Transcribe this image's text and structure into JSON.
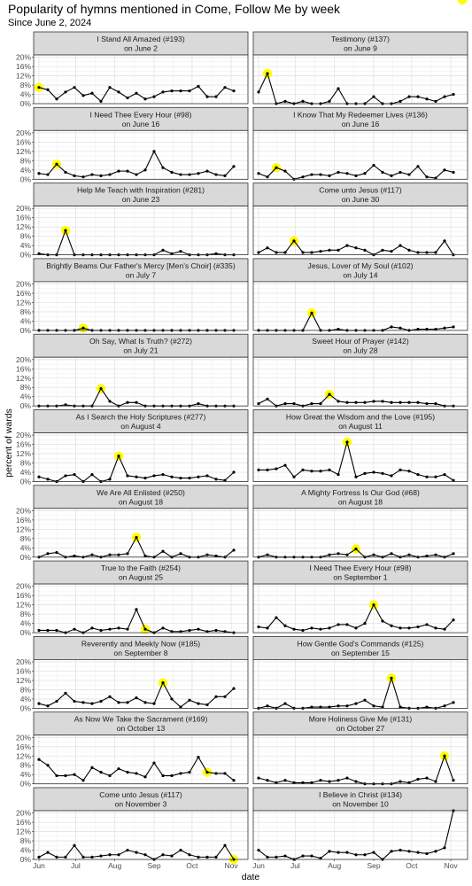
{
  "chart_data": {
    "type": "line",
    "title": "Popularity of hymns mentioned in Come, Follow Me by week",
    "subtitle": "Since June 2, 2024",
    "xlabel": "date",
    "ylabel": "percent of wards",
    "x_tick_labels": [
      "Jun",
      "Jul",
      "Aug",
      "Sep",
      "Oct",
      "Nov"
    ],
    "y_tick_labels": [
      "0%",
      "4%",
      "8%",
      "12%",
      "16%",
      "20%"
    ],
    "ylim": [
      0,
      21
    ],
    "xlim": [
      -0.6,
      23.6
    ],
    "grid": true,
    "highlight_color": "#ffff00",
    "panels": [
      {
        "title": "I Stand All Amazed (#193)",
        "subtitle": "on June 2",
        "highlight": 0,
        "values": [
          7,
          6,
          2,
          5,
          7,
          3.5,
          4.5,
          1,
          7,
          5,
          2.5,
          4.5,
          2,
          3,
          5,
          5.5,
          5.5,
          5.5,
          7.5,
          3,
          3,
          7,
          5.5
        ]
      },
      {
        "title": "Testimony (#137)",
        "subtitle": "on June 9",
        "highlight": 1,
        "values": [
          5,
          13,
          0,
          1,
          0,
          1,
          0,
          0,
          1,
          6.5,
          0,
          0,
          0,
          3,
          0,
          0,
          1,
          3,
          3,
          2,
          1,
          3,
          4
        ]
      },
      {
        "title": "I Need Thee Every Hour (#98)",
        "subtitle": "on June 16",
        "highlight": 2,
        "values": [
          2.5,
          2,
          6.5,
          3,
          1.5,
          1,
          2,
          1.5,
          2,
          3.5,
          3.5,
          2,
          4,
          12,
          5,
          3,
          2,
          2,
          2.5,
          3.5,
          2,
          1.5,
          5.5
        ]
      },
      {
        "title": "I Know That My Redeemer Lives (#136)",
        "subtitle": "on June 16",
        "highlight": 2,
        "values": [
          2.5,
          1,
          5,
          3.5,
          0,
          1,
          2,
          2,
          1.5,
          3,
          2.5,
          1.5,
          2.5,
          6,
          3,
          1.5,
          3,
          2,
          5.5,
          1,
          0.5,
          4,
          3
        ]
      },
      {
        "title": "Help Me Teach with Inspiration (#281)",
        "subtitle": "on June 23",
        "highlight": 3,
        "values": [
          0.5,
          0,
          0,
          10.5,
          0,
          0,
          0,
          0,
          0,
          0,
          0,
          0,
          0,
          0,
          2,
          0.5,
          1.5,
          0,
          0,
          0,
          0.5,
          0,
          0
        ]
      },
      {
        "title": "Come unto Jesus (#117)",
        "subtitle": "on June 30",
        "highlight": 4,
        "values": [
          1,
          3,
          1,
          1,
          6,
          1,
          1,
          1.5,
          2,
          2,
          4,
          3,
          2,
          0,
          2,
          1.5,
          4,
          2,
          1,
          1,
          1,
          6,
          0
        ]
      },
      {
        "title": "Brightly Beams Our Father's Mercy [Men's Choir] (#335)",
        "subtitle": "on July 7",
        "highlight": 5,
        "values": [
          0,
          0,
          0,
          0,
          0,
          1,
          0,
          0,
          0,
          0,
          0,
          0,
          0,
          0,
          0,
          0,
          0,
          0,
          0,
          0,
          0,
          0,
          0
        ]
      },
      {
        "title": "Jesus, Lover of My Soul (#102)",
        "subtitle": "on July 14",
        "highlight": 6,
        "values": [
          0,
          0,
          0,
          0,
          0,
          0,
          7.5,
          0,
          0,
          0.5,
          0,
          0,
          0,
          0,
          0,
          1.5,
          1,
          0,
          0.5,
          0.5,
          0.5,
          1,
          1.5
        ]
      },
      {
        "title": "Oh Say, What Is Truth? (#272)",
        "subtitle": "on July 21",
        "highlight": 7,
        "values": [
          0,
          0,
          0,
          0.5,
          0,
          0,
          0,
          7.5,
          2,
          0,
          1.5,
          1.5,
          0,
          0,
          0,
          0,
          0,
          0,
          1,
          0,
          0,
          0,
          0
        ]
      },
      {
        "title": "Sweet Hour of Prayer (#142)",
        "subtitle": "on July 28",
        "highlight": 8,
        "values": [
          1,
          3,
          0,
          1,
          1,
          0,
          1,
          1,
          5,
          2,
          1.5,
          1.5,
          1.5,
          2,
          2,
          1.5,
          1.5,
          1.5,
          1.5,
          1,
          1,
          0,
          0
        ]
      },
      {
        "title": "As I Search the Holy Scriptures (#277)",
        "subtitle": "on August 4",
        "highlight": 9,
        "values": [
          2,
          1,
          0,
          2.5,
          3,
          0,
          3,
          0,
          1,
          11,
          2.5,
          2,
          1.5,
          2.5,
          3,
          2,
          1.5,
          1.5,
          2,
          2.5,
          1,
          0.5,
          4
        ]
      },
      {
        "title": "How Great the Wisdom and the Love (#195)",
        "subtitle": "on August 11",
        "highlight": 10,
        "values": [
          5,
          5,
          5.5,
          7,
          2,
          5,
          4.5,
          4.5,
          5,
          3,
          17,
          2,
          3.5,
          4,
          3.5,
          2.5,
          5,
          4.5,
          3,
          2,
          2,
          3,
          0.5
        ]
      },
      {
        "title": "We Are All Enlisted (#250)",
        "subtitle": "on August 18",
        "highlight": 11,
        "values": [
          0,
          1.5,
          2,
          0,
          0.5,
          0,
          1,
          0,
          1,
          1,
          1.5,
          8.5,
          0.5,
          0,
          2.5,
          0,
          1.5,
          0,
          0,
          1,
          0.5,
          0,
          3
        ]
      },
      {
        "title": "A Mighty Fortress Is Our God (#68)",
        "subtitle": "on August 18",
        "highlight": 11,
        "values": [
          0,
          1,
          0,
          0,
          0,
          0,
          0,
          0,
          1,
          1.5,
          1,
          3.5,
          0,
          1,
          0,
          1.5,
          0,
          1,
          0,
          0.5,
          1,
          0,
          1.5
        ]
      },
      {
        "title": "True to the Faith (#254)",
        "subtitle": "on August 25",
        "highlight": 12,
        "values": [
          1,
          1,
          1,
          0,
          1.5,
          0,
          2,
          1,
          1.5,
          2,
          1.5,
          10,
          1.5,
          0,
          2,
          0.5,
          0.5,
          1,
          1.5,
          0.5,
          1,
          0.5,
          0
        ]
      },
      {
        "title": "I Need Thee Every Hour (#98)",
        "subtitle": "on September 1",
        "highlight": 13,
        "values": [
          2.5,
          2,
          6.5,
          3,
          1.5,
          1,
          2,
          1.5,
          2,
          3.5,
          3.5,
          2,
          4,
          12,
          5,
          3,
          2,
          2,
          2.5,
          3.5,
          2,
          1.5,
          5.5
        ]
      },
      {
        "title": "Reverently and Meekly Now (#185)",
        "subtitle": "on September 8",
        "highlight": 14,
        "values": [
          2,
          1,
          3,
          6.5,
          3,
          2.5,
          2,
          3,
          5,
          2.5,
          2.5,
          4.5,
          2.5,
          2,
          11,
          4,
          0.5,
          3.5,
          2,
          1.5,
          5,
          5,
          8.5
        ]
      },
      {
        "title": "How Gentle God's Commands (#125)",
        "subtitle": "on September 15",
        "highlight": 15,
        "values": [
          0,
          1,
          0,
          2,
          0,
          0,
          0.5,
          0.5,
          0.5,
          1,
          1,
          2,
          3.5,
          1,
          0.5,
          13,
          0.5,
          0,
          0,
          0.5,
          0,
          1,
          2.5
        ]
      },
      {
        "title": "As Now We Take the Sacrament (#169)",
        "subtitle": "on October 13",
        "highlight": 19,
        "values": [
          10.5,
          8,
          3.5,
          3.5,
          4,
          1.5,
          7,
          5,
          3.5,
          6.5,
          5,
          4.5,
          3,
          9,
          3.5,
          3.5,
          4.5,
          5,
          11.5,
          5,
          4.5,
          4.5,
          1.5
        ]
      },
      {
        "title": "More Holiness Give Me (#131)",
        "subtitle": "on October 27",
        "highlight": 21,
        "values": [
          2.5,
          1.5,
          0.5,
          1.5,
          0.5,
          0.5,
          0.5,
          1.5,
          1,
          1.5,
          2.5,
          1,
          0,
          0,
          0,
          0,
          1,
          0.5,
          2,
          2.5,
          1,
          12,
          1.5
        ]
      },
      {
        "title": "Come unto Jesus (#117)",
        "subtitle": "on November 3",
        "highlight": 22,
        "values": [
          1,
          3,
          1,
          1,
          6,
          1,
          1,
          1.5,
          2,
          2,
          4,
          3,
          2,
          0,
          2,
          1.5,
          4,
          2,
          1,
          1,
          1,
          6,
          0
        ]
      },
      {
        "title": "I Believe in Christ (#134)",
        "subtitle": "on November 10",
        "highlight": 23,
        "values": [
          4,
          1,
          1,
          1.5,
          0,
          1.5,
          1.5,
          0.5,
          3.5,
          3,
          3,
          2,
          2,
          3,
          0,
          3.5,
          4,
          3.5,
          3,
          2.5,
          3.5,
          5,
          21
        ]
      }
    ]
  }
}
